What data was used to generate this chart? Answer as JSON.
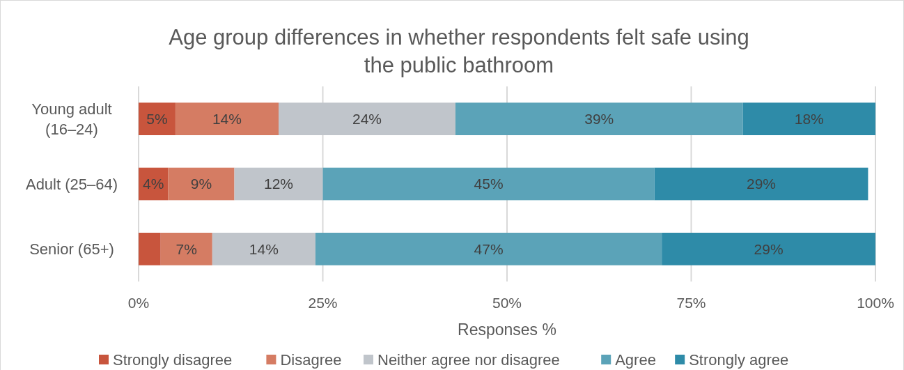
{
  "chart_data": {
    "type": "bar",
    "orientation": "horizontal",
    "stacked": true,
    "title": "Age group differences in whether respondents felt safe using the public bathroom",
    "xlabel": "Responses %",
    "categories": [
      "Young adult (16–24)",
      "Adult (25–64)",
      "Senior (65+)"
    ],
    "series": [
      {
        "name": "Strongly disagree",
        "color": "#c8553d",
        "values": [
          5,
          4,
          3
        ],
        "value_labels": [
          "5%",
          "4%",
          null
        ]
      },
      {
        "name": "Disagree",
        "color": "#d57c63",
        "values": [
          14,
          9,
          7
        ],
        "value_labels": [
          "14%",
          "9%",
          "7%"
        ]
      },
      {
        "name": "Neither agree nor disagree",
        "color": "#c0c5cb",
        "values": [
          24,
          12,
          14
        ],
        "value_labels": [
          "24%",
          "12%",
          "14%"
        ]
      },
      {
        "name": "Agree",
        "color": "#5ba3b8",
        "values": [
          39,
          45,
          47
        ],
        "value_labels": [
          "39%",
          "45%",
          "47%"
        ]
      },
      {
        "name": "Strongly agree",
        "color": "#2e8ba8",
        "values": [
          18,
          29,
          29
        ],
        "value_labels": [
          "18%",
          "29%",
          "29%"
        ]
      }
    ],
    "xlim": [
      0,
      100
    ],
    "xticks": [
      {
        "value": 0,
        "label": "0%"
      },
      {
        "value": 25,
        "label": "25%"
      },
      {
        "value": 50,
        "label": "50%"
      },
      {
        "value": 75,
        "label": "75%"
      },
      {
        "value": 100,
        "label": "100%"
      }
    ],
    "grid": "x",
    "legend": "bottom"
  }
}
